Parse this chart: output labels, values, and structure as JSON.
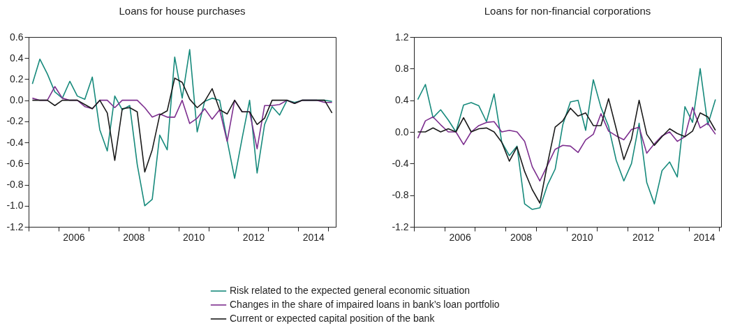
{
  "chart_data": [
    {
      "type": "line",
      "title": "Loans for house purchases",
      "x": [
        2005.125,
        2005.375,
        2005.625,
        2005.875,
        2006.125,
        2006.375,
        2006.625,
        2006.875,
        2007.125,
        2007.375,
        2007.625,
        2007.875,
        2008.125,
        2008.375,
        2008.625,
        2008.875,
        2009.125,
        2009.375,
        2009.625,
        2009.875,
        2010.125,
        2010.375,
        2010.625,
        2010.875,
        2011.125,
        2011.375,
        2011.625,
        2011.875,
        2012.125,
        2012.375,
        2012.625,
        2012.875,
        2013.125,
        2013.375,
        2013.625,
        2013.875,
        2014.125,
        2014.375,
        2014.625,
        2014.875,
        2015.125
      ],
      "series": [
        {
          "name": "Risk related to the expected general economic situation",
          "color": "#178a7c",
          "values": [
            0.155,
            0.39,
            0.25,
            0.08,
            0.02,
            0.18,
            0.04,
            0.01,
            0.22,
            -0.28,
            -0.48,
            0.04,
            -0.09,
            -0.05,
            -0.61,
            -1.0,
            -0.94,
            -0.33,
            -0.47,
            0.41,
            0.02,
            0.48,
            -0.3,
            -0.01,
            0.02,
            0.0,
            -0.38,
            -0.74,
            -0.36,
            0.0,
            -0.69,
            -0.23,
            -0.06,
            -0.14,
            0.0,
            -0.02,
            0.0,
            0.0,
            0.0,
            0.0,
            -0.01
          ]
        },
        {
          "name": "Changes in the share of impaired loans in bank’s loan portfolio",
          "color": "#7d2f8f",
          "values": [
            0.02,
            0.0,
            0.0,
            0.13,
            0.02,
            0.0,
            0.0,
            -0.06,
            -0.08,
            0.0,
            0.0,
            -0.07,
            0.0,
            0.0,
            0.0,
            -0.07,
            -0.16,
            -0.13,
            -0.16,
            -0.16,
            0.0,
            -0.22,
            -0.17,
            -0.08,
            -0.18,
            -0.09,
            -0.39,
            0.0,
            -0.11,
            -0.11,
            -0.46,
            -0.05,
            -0.05,
            -0.04,
            0.0,
            -0.03,
            0.0,
            0.0,
            0.0,
            -0.02,
            -0.02
          ]
        },
        {
          "name": "Current or expected capital position of the bank",
          "color": "#1a1a1a",
          "values": [
            0.0,
            0.0,
            0.0,
            -0.05,
            0.0,
            0.0,
            0.0,
            -0.04,
            -0.08,
            0.0,
            -0.12,
            -0.57,
            -0.08,
            -0.07,
            -0.11,
            -0.68,
            -0.47,
            -0.14,
            -0.1,
            0.21,
            0.17,
            0.01,
            -0.07,
            -0.01,
            0.11,
            -0.09,
            -0.13,
            0.0,
            -0.11,
            -0.11,
            -0.23,
            -0.17,
            0.0,
            0.0,
            0.0,
            -0.03,
            0.0,
            0.0,
            0.0,
            0.0,
            -0.12
          ]
        }
      ],
      "xlim": [
        2005,
        2015.25
      ],
      "xticks": [
        {
          "value": 2005,
          "label": null
        },
        {
          "value": 2006,
          "label": null
        },
        {
          "value": 2006.5,
          "label": "2006"
        },
        {
          "value": 2007,
          "label": null
        },
        {
          "value": 2008,
          "label": null
        },
        {
          "value": 2008.5,
          "label": "2008"
        },
        {
          "value": 2009,
          "label": null
        },
        {
          "value": 2010,
          "label": null
        },
        {
          "value": 2010.5,
          "label": "2010"
        },
        {
          "value": 2011,
          "label": null
        },
        {
          "value": 2012,
          "label": null
        },
        {
          "value": 2012.5,
          "label": "2012"
        },
        {
          "value": 2013,
          "label": null
        },
        {
          "value": 2014,
          "label": null
        },
        {
          "value": 2014.5,
          "label": "2014"
        },
        {
          "value": 2015,
          "label": null
        }
      ],
      "ylim": [
        -1.2,
        0.6
      ],
      "yticks": [
        {
          "value": -1.2,
          "label": "-1.2"
        },
        {
          "value": -1.0,
          "label": "-1.0"
        },
        {
          "value": -0.8,
          "label": "-0.8"
        },
        {
          "value": -0.6,
          "label": "-0.6"
        },
        {
          "value": -0.4,
          "label": "-0.4"
        },
        {
          "value": -0.2,
          "label": "-0.2"
        },
        {
          "value": 0,
          "label": "0.0"
        },
        {
          "value": 0.2,
          "label": "0.2"
        },
        {
          "value": 0.4,
          "label": "0.4"
        },
        {
          "value": 0.6,
          "label": "0.6"
        }
      ],
      "grid": false,
      "legend": "bottom",
      "marker": "none",
      "line_style": "solid"
    },
    {
      "type": "line",
      "title": "Loans for non-financial corporations",
      "x": [
        2005.125,
        2005.375,
        2005.625,
        2005.875,
        2006.125,
        2006.375,
        2006.625,
        2006.875,
        2007.125,
        2007.375,
        2007.625,
        2007.875,
        2008.125,
        2008.375,
        2008.625,
        2008.875,
        2009.125,
        2009.375,
        2009.625,
        2009.875,
        2010.125,
        2010.375,
        2010.625,
        2010.875,
        2011.125,
        2011.375,
        2011.625,
        2011.875,
        2012.125,
        2012.375,
        2012.625,
        2012.875,
        2013.125,
        2013.375,
        2013.625,
        2013.875,
        2014.125,
        2014.375,
        2014.625,
        2014.875
      ],
      "series": [
        {
          "name": "Risk related to the expected general economic situation",
          "color": "#178a7c",
          "values": [
            0.41,
            0.6,
            0.18,
            0.28,
            0.15,
            0.0,
            0.34,
            0.37,
            0.33,
            0.13,
            0.48,
            -0.13,
            -0.3,
            -0.18,
            -0.91,
            -0.98,
            -0.96,
            -0.67,
            -0.47,
            0.09,
            0.38,
            0.4,
            0.02,
            0.66,
            0.31,
            0.07,
            -0.36,
            -0.62,
            -0.4,
            0.11,
            -0.64,
            -0.91,
            -0.49,
            -0.38,
            -0.57,
            0.32,
            0.12,
            0.8,
            0.09,
            0.41
          ]
        },
        {
          "name": "Changes in the share of impaired loans in bank’s loan portfolio",
          "color": "#7d2f8f",
          "values": [
            -0.08,
            0.14,
            0.19,
            0.09,
            0.0,
            0.0,
            -0.16,
            0.0,
            0.08,
            0.12,
            0.13,
            0.0,
            0.02,
            0.0,
            -0.12,
            -0.44,
            -0.62,
            -0.42,
            -0.22,
            -0.17,
            -0.18,
            -0.26,
            -0.1,
            -0.03,
            0.23,
            0.01,
            -0.05,
            -0.1,
            0.03,
            0.06,
            -0.27,
            -0.15,
            -0.05,
            0.0,
            -0.12,
            -0.06,
            0.31,
            0.05,
            0.11,
            -0.03
          ]
        },
        {
          "name": "Current or expected capital position of the bank",
          "color": "#1a1a1a",
          "values": [
            0.0,
            0.0,
            0.05,
            0.0,
            0.04,
            0.0,
            0.18,
            0.0,
            0.04,
            0.05,
            0.0,
            -0.13,
            -0.37,
            -0.19,
            -0.5,
            -0.73,
            -0.9,
            -0.4,
            0.06,
            0.14,
            0.3,
            0.2,
            0.24,
            0.08,
            0.08,
            0.42,
            0.04,
            -0.35,
            -0.09,
            0.4,
            -0.03,
            -0.17,
            -0.06,
            0.04,
            -0.02,
            -0.06,
            0.01,
            0.24,
            0.19,
            0.02
          ]
        }
      ],
      "xlim": [
        2005,
        2015.06
      ],
      "xticks": [
        {
          "value": 2005,
          "label": null
        },
        {
          "value": 2006,
          "label": null
        },
        {
          "value": 2006.5,
          "label": "2006"
        },
        {
          "value": 2007,
          "label": null
        },
        {
          "value": 2008,
          "label": null
        },
        {
          "value": 2008.5,
          "label": "2008"
        },
        {
          "value": 2009,
          "label": null
        },
        {
          "value": 2010,
          "label": null
        },
        {
          "value": 2010.5,
          "label": "2010"
        },
        {
          "value": 2011,
          "label": null
        },
        {
          "value": 2012,
          "label": null
        },
        {
          "value": 2012.5,
          "label": "2012"
        },
        {
          "value": 2013,
          "label": null
        },
        {
          "value": 2014,
          "label": null
        },
        {
          "value": 2014.5,
          "label": "2014"
        },
        {
          "value": 2015,
          "label": null
        }
      ],
      "ylim": [
        -1.2,
        1.2
      ],
      "yticks": [
        {
          "value": -1.2,
          "label": "-1.2"
        },
        {
          "value": -0.8,
          "label": "-0.8"
        },
        {
          "value": -0.4,
          "label": "-0.4"
        },
        {
          "value": 0,
          "label": "0.0"
        },
        {
          "value": 0.4,
          "label": "0.4"
        },
        {
          "value": 0.8,
          "label": "0.8"
        },
        {
          "value": 1.2,
          "label": "1.2"
        }
      ],
      "grid": false,
      "legend": "bottom",
      "marker": "none",
      "line_style": "solid"
    }
  ]
}
